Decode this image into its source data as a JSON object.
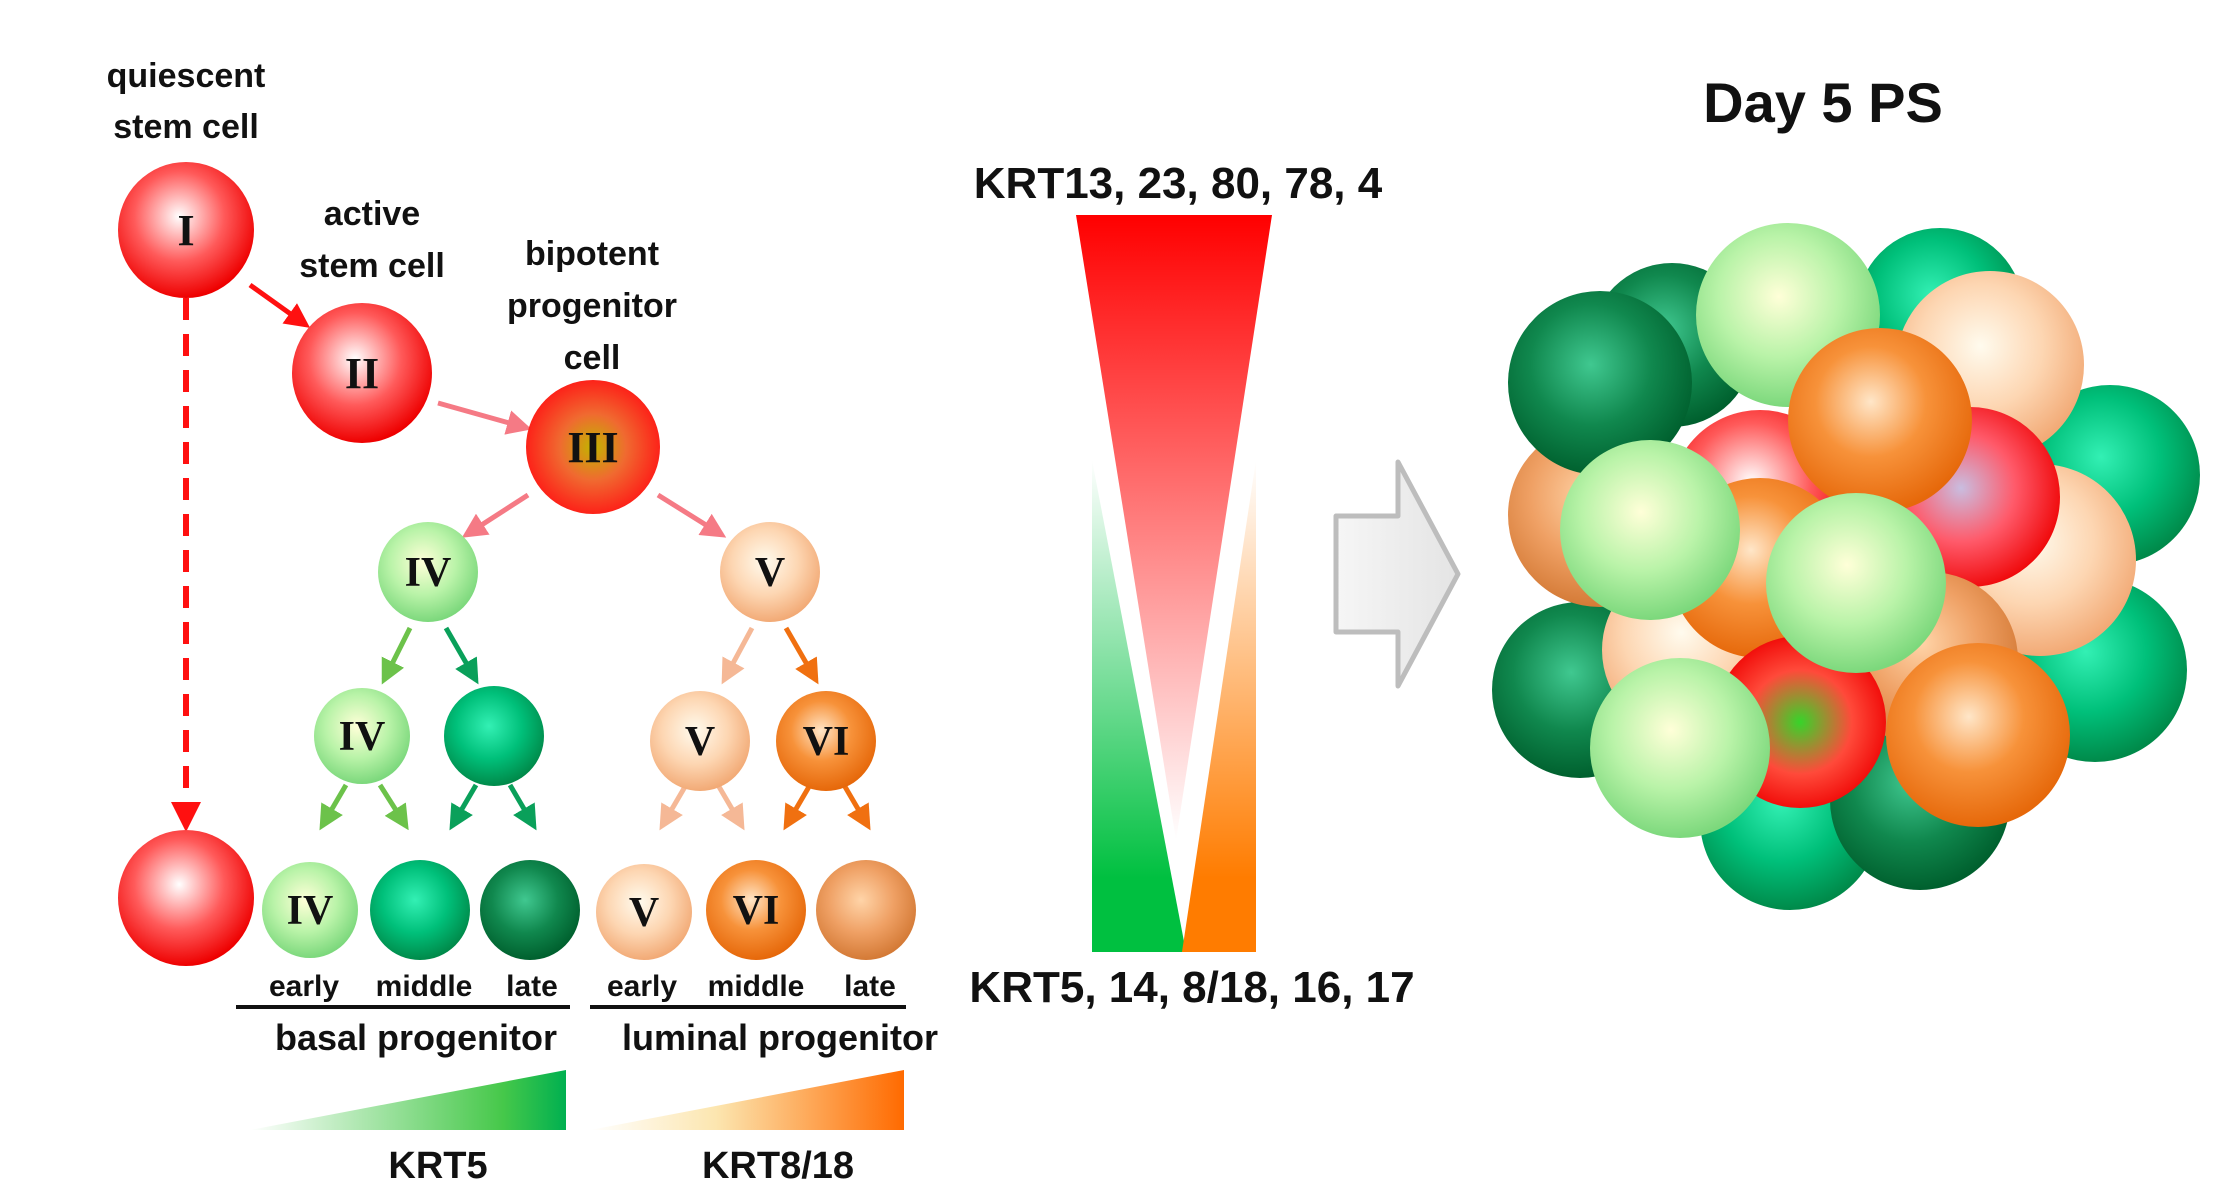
{
  "labels": {
    "quiescent_1": "quiescent",
    "quiescent_2": "stem cell",
    "active_1": "active",
    "active_2": "stem cell",
    "bipotent_1": "bipotent",
    "bipotent_2": "progenitor",
    "bipotent_3": "cell",
    "basal_early": "early",
    "basal_middle": "middle",
    "basal_late": "late",
    "luminal_early": "early",
    "luminal_middle": "middle",
    "luminal_late": "late",
    "basal_group": "basal progenitor",
    "luminal_group": "luminal progenitor",
    "krt5_bar": "KRT5",
    "krt818_bar": "KRT8/18",
    "top_markers": "KRT13, 23, 80, 78, 4",
    "bottom_markers": "KRT5, 14, 8/18, 16, 17",
    "day5_title": "Day 5 PS"
  },
  "cells": {
    "c1": "I",
    "c2": "II",
    "c3": "III",
    "c4": "IV",
    "c5": "V",
    "c6": "IV",
    "c7": "",
    "c8": "V",
    "c9": "VI",
    "c10": "",
    "c11": "IV",
    "c12": "",
    "c13": "",
    "c14": "V",
    "c15": "VI",
    "c16": ""
  },
  "colors": {
    "red": "#ff0000",
    "light_green": "#8ee68e",
    "mid_green": "#00c070",
    "dark_green": "#007a3e",
    "peach": "#f7b98a",
    "orange": "#f07820",
    "light_orange": "#e8925a",
    "arrow_gray": "#bdbdbd"
  }
}
